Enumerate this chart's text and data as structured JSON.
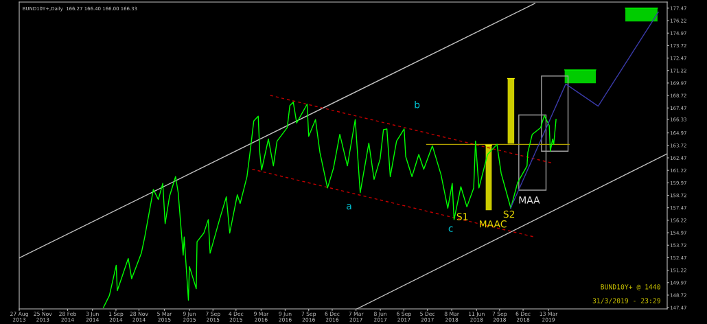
{
  "chart_data": {
    "type": "line",
    "title": "BUND10Y+,Daily  166.27 166.40 166.00 166.33",
    "xlim": [
      "2013-08-27",
      "2020-06-09"
    ],
    "ylim": [
      147.34,
      178.08
    ],
    "xticks": [
      {
        "value": "2013-08-27",
        "label": "27 Aug 2013"
      },
      {
        "value": "2013-11-25",
        "label": "25 Nov 2013"
      },
      {
        "value": "2014-02-28",
        "label": "28 Feb 2014"
      },
      {
        "value": "2014-06-03",
        "label": "3 Jun 2014"
      },
      {
        "value": "2014-09-01",
        "label": "1 Sep 2014"
      },
      {
        "value": "2014-11-28",
        "label": "28 Nov 2014"
      },
      {
        "value": "2015-03-05",
        "label": "5 Mar 2015"
      },
      {
        "value": "2015-06-09",
        "label": "9 Jun 2015"
      },
      {
        "value": "2015-09-07",
        "label": "7 Sep 2015"
      },
      {
        "value": "2015-12-04",
        "label": "4 Dec 2015"
      },
      {
        "value": "2016-03-09",
        "label": "9 Mar 2016"
      },
      {
        "value": "2016-06-09",
        "label": "9 Jun 2016"
      },
      {
        "value": "2016-09-07",
        "label": "7 Sep 2016"
      },
      {
        "value": "2016-12-06",
        "label": "6 Dec 2016"
      },
      {
        "value": "2017-03-07",
        "label": "7 Mar 2017"
      },
      {
        "value": "2017-06-08",
        "label": "8 Jun 2017"
      },
      {
        "value": "2017-09-06",
        "label": "6 Sep 2017"
      },
      {
        "value": "2017-12-05",
        "label": "5 Dec 2017"
      },
      {
        "value": "2018-03-08",
        "label": "8 Mar 2018"
      },
      {
        "value": "2018-06-11",
        "label": "11 Jun 2018"
      },
      {
        "value": "2018-09-07",
        "label": "7 Sep 2018"
      },
      {
        "value": "2018-12-06",
        "label": "6 Dec 2018"
      },
      {
        "value": "2019-03-13",
        "label": "13 Mar 2019"
      }
    ],
    "yticks": [
      147.47,
      148.72,
      149.97,
      151.22,
      152.47,
      153.72,
      154.97,
      156.22,
      157.47,
      158.72,
      159.97,
      161.22,
      162.47,
      163.72,
      164.97,
      166.33,
      167.47,
      168.72,
      169.97,
      171.22,
      172.47,
      173.72,
      174.97,
      176.22,
      177.47
    ],
    "grid": false,
    "series": [
      {
        "color": "#c0c0c0",
        "x": [
          "2013-08-27",
          "2019-01-20"
        ],
        "values": [
          152.45,
          177.94
        ]
      },
      {
        "color": "#c0c0c0",
        "x": [
          "2017-03-10",
          "2020-06-09"
        ],
        "values": [
          147.34,
          162.88
        ]
      },
      {
        "color": "#c00000",
        "line_style": "dashed",
        "x": [
          "2016-04-13",
          "2019-03-29"
        ],
        "values": [
          168.73,
          161.94
        ]
      },
      {
        "color": "#c00000",
        "line_style": "dashed",
        "x": [
          "2016-02-04",
          "2019-01-19"
        ],
        "values": [
          161.33,
          154.54
        ]
      },
      {
        "color": "#b0a000",
        "x": [
          "2017-12-02",
          "2019-05-31"
        ],
        "values": [
          163.82,
          163.82
        ]
      },
      {
        "color": "#ffff00",
        "x": [
          "2018-07-16",
          "2018-08-08"
        ],
        "lower": [
          157.23,
          157.23
        ],
        "upper": [
          163.75,
          163.75
        ],
        "values": [
          163.75,
          163.75
        ]
      },
      {
        "color": "#ffff00",
        "x": [
          "2018-10-08",
          "2018-11-02"
        ],
        "lower": [
          163.89,
          163.89
        ],
        "upper": [
          170.41,
          170.41
        ],
        "values": [
          170.41,
          170.41
        ]
      },
      {
        "color": "#00ff00",
        "x": [
          "2014-07-15",
          "2014-08-07",
          "2014-09-02",
          "2014-09-06",
          "2014-10-18",
          "2014-10-31",
          "2014-12-07",
          "2014-12-20",
          "2015-01-22",
          "2015-02-10",
          "2015-02-27",
          "2015-03-08",
          "2015-03-25",
          "2015-04-17",
          "2015-04-27",
          "2015-05-16",
          "2015-05-20",
          "2015-06-05",
          "2015-06-09",
          "2015-07-05",
          "2015-07-08",
          "2015-08-03",
          "2015-08-20",
          "2015-08-27",
          "2015-10-02",
          "2015-10-28",
          "2015-11-10",
          "2015-12-09",
          "2015-12-20",
          "2016-01-15",
          "2016-01-28",
          "2016-02-10",
          "2016-02-27",
          "2016-03-04",
          "2016-03-11",
          "2016-04-06",
          "2016-04-25",
          "2016-05-09",
          "2016-06-17",
          "2016-06-27",
          "2016-07-10",
          "2016-07-23",
          "2016-09-01",
          "2016-09-07",
          "2016-10-03",
          "2016-10-20",
          "2016-11-18",
          "2016-12-11",
          "2017-01-04",
          "2017-02-02",
          "2017-03-04",
          "2017-03-23",
          "2017-04-25",
          "2017-05-15",
          "2017-06-07",
          "2017-06-20",
          "2017-07-03",
          "2017-07-16",
          "2017-08-09",
          "2017-09-07",
          "2017-09-13",
          "2017-10-07",
          "2017-11-02",
          "2017-11-21",
          "2017-12-24",
          "2018-01-26",
          "2018-02-21",
          "2018-03-10",
          "2018-03-17",
          "2018-04-12",
          "2018-05-05",
          "2018-05-31",
          "2018-06-07",
          "2018-06-20",
          "2018-07-23",
          "2018-08-28",
          "2018-09-13",
          "2018-10-20",
          "2018-11-15",
          "2018-12-21",
          "2018-12-24",
          "2019-01-10",
          "2019-02-11",
          "2019-02-25",
          "2019-03-16",
          "2019-03-20",
          "2019-03-29",
          "2019-04-02",
          "2019-04-11"
        ],
        "values": [
          147.48,
          148.69,
          151.71,
          149.16,
          152.39,
          150.37,
          152.92,
          154.54,
          159.31,
          158.3,
          159.92,
          155.88,
          158.64,
          160.59,
          158.98,
          152.72,
          154.54,
          148.22,
          151.58,
          149.36,
          154.07,
          154.94,
          156.29,
          152.92,
          156.29,
          158.57,
          154.94,
          158.77,
          157.9,
          160.59,
          163.28,
          166.17,
          166.64,
          163.01,
          161.26,
          164.36,
          161.67,
          164.15,
          165.5,
          167.72,
          168.06,
          165.97,
          167.85,
          164.63,
          166.31,
          163.01,
          159.45,
          161.46,
          164.83,
          161.67,
          166.31,
          158.98,
          163.95,
          160.32,
          162.34,
          165.3,
          165.37,
          160.59,
          164.15,
          165.37,
          162.61,
          160.59,
          162.81,
          161.33,
          163.68,
          160.79,
          157.43,
          159.92,
          156.29,
          159.58,
          157.56,
          159.45,
          164.15,
          159.45,
          162.81,
          163.82,
          160.93,
          157.43,
          159.99,
          161.67,
          163.01,
          164.83,
          165.5,
          166.71,
          165.7,
          163.15,
          164.36,
          163.82,
          166.33
        ]
      },
      {
        "color": "#3a3aa8",
        "x": [
          "2018-10-19",
          "2019-05-18",
          "2019-09-19",
          "2020-05-06"
        ],
        "values": [
          157.43,
          169.87,
          167.65,
          177.07
        ]
      },
      {
        "color": "#00ff00",
        "x": [
          "2019-05-14",
          "2019-09-10"
        ],
        "lower": [
          169.94,
          169.94
        ],
        "upper": [
          171.28,
          171.28
        ],
        "values": [
          171.28,
          171.28
        ]
      },
      {
        "color": "#00ff00",
        "x": [
          "2020-01-01",
          "2020-05-03"
        ],
        "lower": [
          176.13,
          176.13
        ],
        "upper": [
          177.47,
          177.47
        ],
        "values": [
          177.47,
          177.47
        ]
      }
    ],
    "annotations": [
      "a",
      "b",
      "c",
      "S1",
      "MAAC",
      "S2",
      "MAA",
      "BUND10Y+ @ 1440",
      "31/3/2019 - 23:29"
    ]
  }
}
